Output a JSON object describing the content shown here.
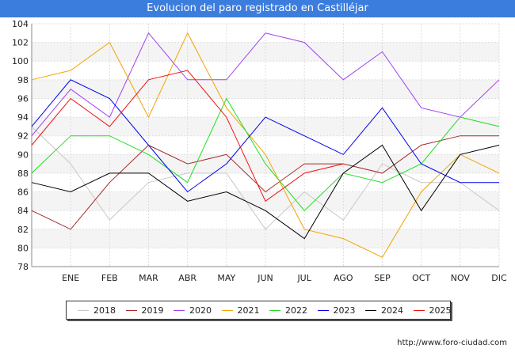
{
  "header": {
    "title": "Evolucion del paro registrado en Castilléjar"
  },
  "footer": {
    "url": "http://www.foro-ciudad.com"
  },
  "chart_data": {
    "type": "line",
    "categories": [
      "",
      "ENE",
      "FEB",
      "MAR",
      "ABR",
      "MAY",
      "JUN",
      "JUL",
      "AGO",
      "SEP",
      "OCT",
      "NOV",
      "DIC"
    ],
    "ylim": [
      78,
      104
    ],
    "yticks": [
      78,
      80,
      82,
      84,
      86,
      88,
      90,
      92,
      94,
      96,
      98,
      100,
      102,
      104
    ],
    "grid": true,
    "legend_position": "bottom",
    "series": [
      {
        "name": "2018",
        "color": "#c8c8c8",
        "values": [
          93,
          89,
          83,
          87,
          88,
          88,
          82,
          86,
          83,
          89,
          87,
          87,
          84
        ]
      },
      {
        "name": "2019",
        "color": "#a52a2a",
        "values": [
          84,
          82,
          87,
          91,
          89,
          90,
          86,
          89,
          89,
          88,
          91,
          92,
          92
        ]
      },
      {
        "name": "2020",
        "color": "#a040f0",
        "values": [
          92,
          97,
          94,
          103,
          98,
          98,
          103,
          102,
          98,
          101,
          95,
          94,
          98
        ]
      },
      {
        "name": "2021",
        "color": "#f0a500",
        "values": [
          98,
          99,
          102,
          94,
          103,
          95,
          90,
          82,
          81,
          79,
          86,
          90,
          88
        ]
      },
      {
        "name": "2022",
        "color": "#22dd22",
        "values": [
          88,
          92,
          92,
          90,
          87,
          96,
          89,
          84,
          88,
          87,
          89,
          94,
          93
        ]
      },
      {
        "name": "2023",
        "color": "#0000ee",
        "values": [
          93,
          98,
          96,
          91,
          86,
          89,
          94,
          92,
          90,
          95,
          89,
          87,
          87
        ]
      },
      {
        "name": "2024",
        "color": "#000000",
        "values": [
          87,
          86,
          88,
          88,
          85,
          86,
          84,
          81,
          88,
          91,
          84,
          90,
          91
        ]
      },
      {
        "name": "2025",
        "color": "#ee1111",
        "values": [
          91,
          96,
          93,
          98,
          99,
          94,
          85,
          88,
          89,
          null,
          null,
          null,
          null
        ]
      }
    ]
  }
}
